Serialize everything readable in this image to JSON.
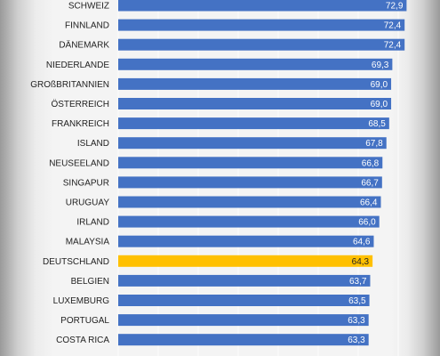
{
  "chart_data": {
    "type": "bar",
    "orientation": "horizontal",
    "categories": [
      "SCHWEIZ",
      "FINNLAND",
      "DÄNEMARK",
      "NIEDERLANDE",
      "GROßBRITANNIEN",
      "ÖSTERREICH",
      "FRANKREICH",
      "ISLAND",
      "NEUSEELAND",
      "SINGAPUR",
      "URUGUAY",
      "IRLAND",
      "MALAYSIA",
      "DEUTSCHLAND",
      "BELGIEN",
      "LUXEMBURG",
      "PORTUGAL",
      "COSTA RICA"
    ],
    "values": [
      72.9,
      72.4,
      72.4,
      69.3,
      69.0,
      69.0,
      68.5,
      67.8,
      66.8,
      66.7,
      66.4,
      66.0,
      64.6,
      64.3,
      63.7,
      63.5,
      63.3,
      63.3
    ],
    "value_labels": [
      "72,9",
      "72,4",
      "72,4",
      "69,3",
      "69,0",
      "69,0",
      "68,5",
      "67,8",
      "66,8",
      "66,7",
      "66,4",
      "66,0",
      "64,6",
      "64,3",
      "63,7",
      "63,5",
      "63,3",
      "63,3"
    ],
    "colors": {
      "default": "#4472c4",
      "highlight": "#ffc000"
    },
    "highlight_category": "DEUTSCHLAND",
    "grid": true,
    "legend": "none"
  }
}
